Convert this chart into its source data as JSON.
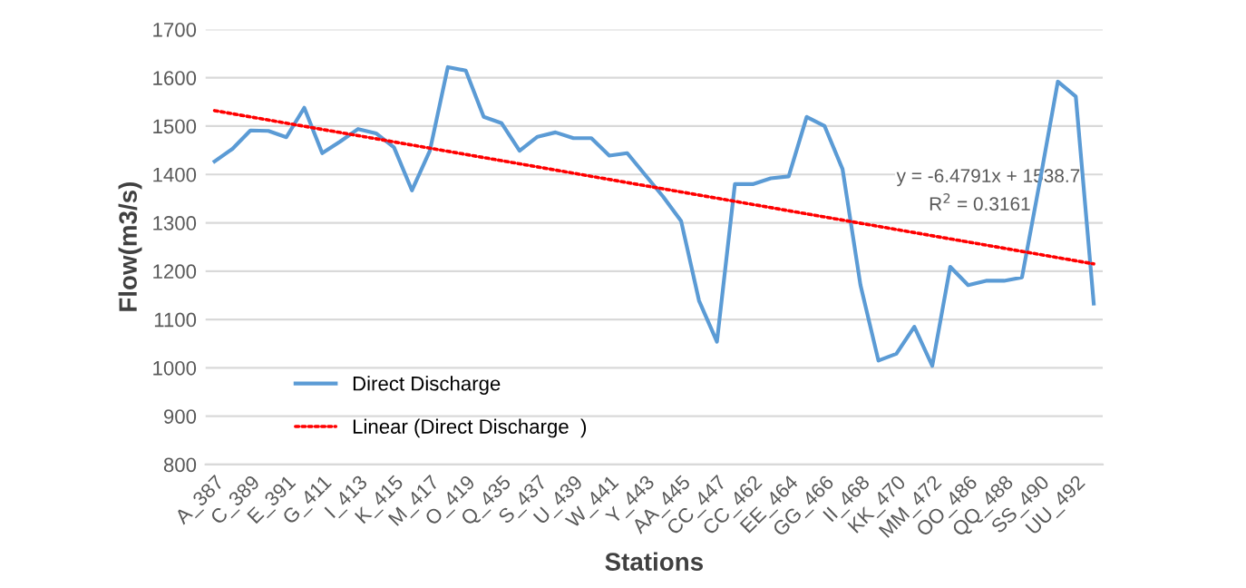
{
  "chart_data": {
    "type": "line",
    "xlabel": "Stations",
    "ylabel": "Flow(m3/s)",
    "categories": [
      "A_387",
      null,
      "C_389",
      null,
      "E_391",
      null,
      "G_411",
      null,
      "I_413",
      null,
      "K_415",
      null,
      "M_417",
      null,
      "O_419",
      null,
      "Q_435",
      null,
      "S_437",
      null,
      "U_439",
      null,
      "W_441",
      null,
      "Y_443",
      null,
      "AA_445",
      null,
      "CC_447",
      null,
      "CC_462",
      null,
      "EE_464",
      null,
      "GG_466",
      null,
      "II_468",
      null,
      "KK_470",
      null,
      "MM_472",
      null,
      "OO_486",
      null,
      "QQ_488",
      null,
      "SS_490",
      null,
      "UU_492",
      null
    ],
    "series": [
      {
        "name": "Direct Discharge",
        "color": "#5b9bd5",
        "line_style": "solid",
        "values": [
          1427,
          1453,
          1491,
          1490,
          1477,
          1538,
          1444,
          1468,
          1494,
          1485,
          1456,
          1367,
          1449,
          1622,
          1615,
          1519,
          1506,
          1449,
          1478,
          1487,
          1475,
          1475,
          1439,
          1444,
          1399,
          1354,
          1304,
          1139,
          1054,
          1380,
          1380,
          1392,
          1396,
          1519,
          1500,
          1411,
          1171,
          1015,
          1029,
          1085,
          1004,
          1209,
          1171,
          1180,
          1180,
          1187,
          1386,
          1592,
          1561,
          1133
        ]
      },
      {
        "name": "Linear (Direct Discharge  )",
        "color": "#ff0000",
        "line_style": "dotted",
        "values": [
          1532,
          null,
          null,
          null,
          null,
          null,
          null,
          null,
          null,
          null,
          null,
          null,
          null,
          null,
          null,
          null,
          null,
          null,
          null,
          null,
          null,
          null,
          null,
          null,
          null,
          null,
          null,
          null,
          null,
          null,
          null,
          null,
          null,
          null,
          null,
          null,
          null,
          null,
          null,
          null,
          null,
          null,
          null,
          null,
          null,
          null,
          null,
          null,
          null,
          1215
        ]
      }
    ],
    "ylim": [
      800,
      1700
    ],
    "yticks": [
      800,
      900,
      1000,
      1100,
      1200,
      1300,
      1400,
      1500,
      1600,
      1700
    ],
    "grid": "y",
    "legend": "bottom left",
    "annotations": [
      "y = -6.4791x + 1538.7",
      "R$^{2}$ = 0.3161"
    ]
  }
}
